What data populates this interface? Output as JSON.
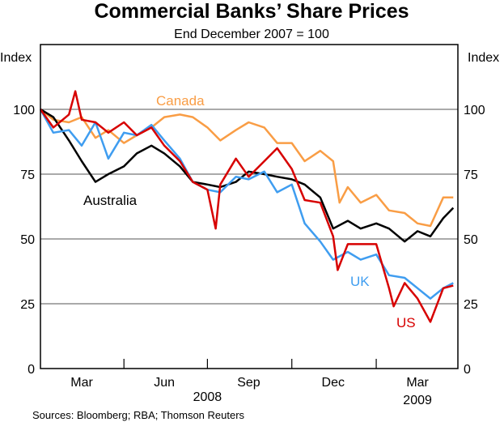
{
  "chart_data": {
    "type": "line",
    "title": "Commercial Banks’ Share Prices",
    "subtitle": "End December 2007 = 100",
    "ylabel_left": "Index",
    "ylabel_right": "Index",
    "ylim": [
      0,
      125
    ],
    "yticks": [
      0,
      25,
      50,
      75,
      100
    ],
    "xlim": [
      "2008-01-01",
      "2009-03-31"
    ],
    "x_tick_labels": [
      {
        "label": "Mar",
        "date": "2008-02-15"
      },
      {
        "label": "Jun",
        "date": "2008-05-15"
      },
      {
        "label": "Sep",
        "date": "2008-08-15"
      },
      {
        "label": "Dec",
        "date": "2008-11-15"
      },
      {
        "label": "Mar",
        "date": "2009-02-15"
      }
    ],
    "quarter_boundaries": [
      "2008-04-01",
      "2008-07-01",
      "2008-10-01",
      "2009-01-01"
    ],
    "year_labels": [
      {
        "label": "2008",
        "date": "2008-07-01"
      },
      {
        "label": "2009",
        "date": "2009-02-15"
      }
    ],
    "grid": "horizontal",
    "source": "Sources: Bloomberg; RBA; Thomson Reuters",
    "series": [
      {
        "name": "Canada",
        "color": "#f99d45",
        "points": [
          [
            "2008-01-01",
            100
          ],
          [
            "2008-01-15",
            96
          ],
          [
            "2008-02-01",
            95
          ],
          [
            "2008-02-15",
            97
          ],
          [
            "2008-03-01",
            89
          ],
          [
            "2008-03-15",
            92
          ],
          [
            "2008-04-01",
            87
          ],
          [
            "2008-04-15",
            90
          ],
          [
            "2008-05-01",
            93
          ],
          [
            "2008-05-15",
            97
          ],
          [
            "2008-06-01",
            98
          ],
          [
            "2008-06-15",
            97
          ],
          [
            "2008-07-01",
            93
          ],
          [
            "2008-07-15",
            88
          ],
          [
            "2008-08-01",
            92
          ],
          [
            "2008-08-15",
            95
          ],
          [
            "2008-09-01",
            93
          ],
          [
            "2008-09-15",
            87
          ],
          [
            "2008-10-01",
            87
          ],
          [
            "2008-10-15",
            80
          ],
          [
            "2008-11-01",
            84
          ],
          [
            "2008-11-15",
            80
          ],
          [
            "2008-11-22",
            64
          ],
          [
            "2008-12-01",
            70
          ],
          [
            "2008-12-15",
            64
          ],
          [
            "2009-01-01",
            67
          ],
          [
            "2009-01-15",
            61
          ],
          [
            "2009-02-01",
            60
          ],
          [
            "2009-02-15",
            56
          ],
          [
            "2009-03-01",
            55
          ],
          [
            "2009-03-15",
            66
          ],
          [
            "2009-03-26",
            66
          ]
        ]
      },
      {
        "name": "Australia",
        "color": "#000000",
        "points": [
          [
            "2008-01-01",
            100
          ],
          [
            "2008-01-15",
            97
          ],
          [
            "2008-02-01",
            88
          ],
          [
            "2008-02-15",
            80
          ],
          [
            "2008-03-01",
            72
          ],
          [
            "2008-03-15",
            75
          ],
          [
            "2008-04-01",
            78
          ],
          [
            "2008-04-15",
            83
          ],
          [
            "2008-05-01",
            86
          ],
          [
            "2008-05-15",
            83
          ],
          [
            "2008-06-01",
            78
          ],
          [
            "2008-06-15",
            72
          ],
          [
            "2008-07-01",
            71
          ],
          [
            "2008-07-15",
            70
          ],
          [
            "2008-08-01",
            72
          ],
          [
            "2008-08-15",
            76
          ],
          [
            "2008-09-01",
            75
          ],
          [
            "2008-09-15",
            74
          ],
          [
            "2008-10-01",
            73
          ],
          [
            "2008-10-15",
            71
          ],
          [
            "2008-11-01",
            66
          ],
          [
            "2008-11-15",
            54
          ],
          [
            "2008-12-01",
            57
          ],
          [
            "2008-12-15",
            54
          ],
          [
            "2009-01-01",
            56
          ],
          [
            "2009-01-15",
            54
          ],
          [
            "2009-02-01",
            49
          ],
          [
            "2009-02-15",
            53
          ],
          [
            "2009-03-01",
            51
          ],
          [
            "2009-03-15",
            58
          ],
          [
            "2009-03-26",
            62
          ]
        ]
      },
      {
        "name": "UK",
        "color": "#3f9df0",
        "points": [
          [
            "2008-01-01",
            100
          ],
          [
            "2008-01-15",
            91
          ],
          [
            "2008-02-01",
            92
          ],
          [
            "2008-02-15",
            86
          ],
          [
            "2008-03-01",
            95
          ],
          [
            "2008-03-15",
            81
          ],
          [
            "2008-04-01",
            91
          ],
          [
            "2008-04-15",
            90
          ],
          [
            "2008-05-01",
            94
          ],
          [
            "2008-05-15",
            88
          ],
          [
            "2008-06-01",
            81
          ],
          [
            "2008-06-15",
            72
          ],
          [
            "2008-07-01",
            69
          ],
          [
            "2008-07-15",
            68
          ],
          [
            "2008-08-01",
            74
          ],
          [
            "2008-08-15",
            73
          ],
          [
            "2008-09-01",
            76
          ],
          [
            "2008-09-15",
            68
          ],
          [
            "2008-10-01",
            71
          ],
          [
            "2008-10-15",
            56
          ],
          [
            "2008-11-01",
            49
          ],
          [
            "2008-11-15",
            42
          ],
          [
            "2008-12-01",
            45
          ],
          [
            "2008-12-15",
            42
          ],
          [
            "2009-01-01",
            44
          ],
          [
            "2009-01-15",
            36
          ],
          [
            "2009-02-01",
            35
          ],
          [
            "2009-02-15",
            31
          ],
          [
            "2009-03-01",
            27
          ],
          [
            "2009-03-15",
            31
          ],
          [
            "2009-03-26",
            33
          ]
        ]
      },
      {
        "name": "US",
        "color": "#d70000",
        "points": [
          [
            "2008-01-01",
            100
          ],
          [
            "2008-01-15",
            93
          ],
          [
            "2008-02-01",
            98
          ],
          [
            "2008-02-08",
            107
          ],
          [
            "2008-02-15",
            96
          ],
          [
            "2008-03-01",
            95
          ],
          [
            "2008-03-15",
            91
          ],
          [
            "2008-04-01",
            95
          ],
          [
            "2008-04-15",
            90
          ],
          [
            "2008-05-01",
            93
          ],
          [
            "2008-05-15",
            86
          ],
          [
            "2008-06-01",
            80
          ],
          [
            "2008-06-15",
            72
          ],
          [
            "2008-07-01",
            69
          ],
          [
            "2008-07-10",
            54
          ],
          [
            "2008-07-15",
            71
          ],
          [
            "2008-08-01",
            81
          ],
          [
            "2008-08-15",
            74
          ],
          [
            "2008-09-01",
            80
          ],
          [
            "2008-09-15",
            85
          ],
          [
            "2008-10-01",
            77
          ],
          [
            "2008-10-15",
            65
          ],
          [
            "2008-11-01",
            64
          ],
          [
            "2008-11-15",
            51
          ],
          [
            "2008-11-20",
            38
          ],
          [
            "2008-12-01",
            48
          ],
          [
            "2008-12-15",
            48
          ],
          [
            "2009-01-01",
            48
          ],
          [
            "2009-01-15",
            31
          ],
          [
            "2009-01-20",
            24
          ],
          [
            "2009-02-01",
            33
          ],
          [
            "2009-02-15",
            27
          ],
          [
            "2009-03-01",
            18
          ],
          [
            "2009-03-15",
            31
          ],
          [
            "2009-03-26",
            32
          ]
        ]
      }
    ]
  }
}
